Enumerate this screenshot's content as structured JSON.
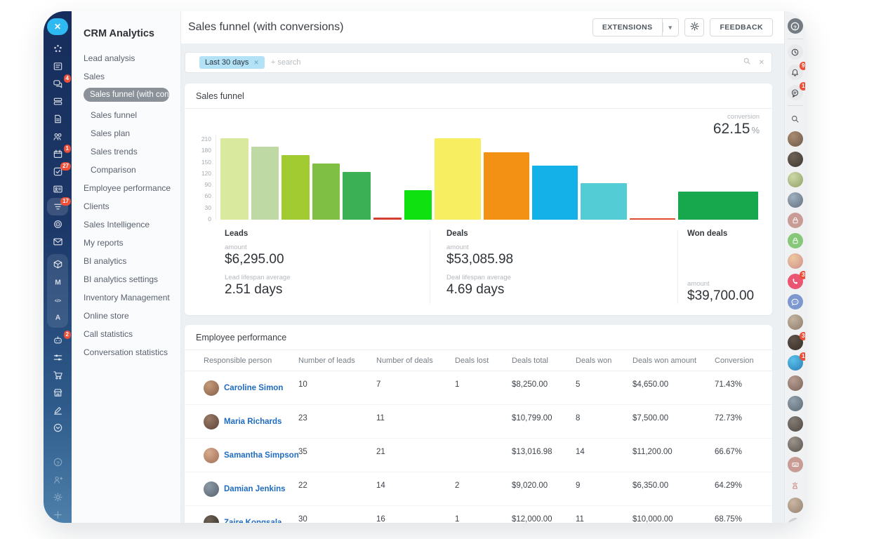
{
  "sidebar": {
    "title": "CRM Analytics",
    "items": [
      {
        "label": "Lead analysis",
        "indent": 0,
        "selected": false
      },
      {
        "label": "Sales",
        "indent": 0,
        "selected": false
      },
      {
        "label": "Sales funnel (with con...",
        "indent": 1,
        "selected": true
      },
      {
        "label": "Sales funnel",
        "indent": 1,
        "selected": false
      },
      {
        "label": "Sales plan",
        "indent": 1,
        "selected": false
      },
      {
        "label": "Sales trends",
        "indent": 1,
        "selected": false
      },
      {
        "label": "Comparison",
        "indent": 1,
        "selected": false
      },
      {
        "label": "Employee performance",
        "indent": 0,
        "selected": false
      },
      {
        "label": "Clients",
        "indent": 0,
        "selected": false
      },
      {
        "label": "Sales Intelligence",
        "indent": 0,
        "selected": false
      },
      {
        "label": "My reports",
        "indent": 0,
        "selected": false
      },
      {
        "label": "BI analytics",
        "indent": 0,
        "selected": false
      },
      {
        "label": "BI analytics settings",
        "indent": 0,
        "selected": false
      },
      {
        "label": "Inventory Management",
        "indent": 0,
        "selected": false
      },
      {
        "label": "Online store",
        "indent": 0,
        "selected": false
      },
      {
        "label": "Call statistics",
        "indent": 0,
        "selected": false
      },
      {
        "label": "Conversation statistics",
        "indent": 0,
        "selected": false
      }
    ]
  },
  "left_rail": {
    "close_glyph": "✕",
    "items": [
      {
        "icon": "pulse",
        "name": "pulse"
      },
      {
        "icon": "feed",
        "name": "feed"
      },
      {
        "icon": "messenger",
        "name": "messenger",
        "badge": "4"
      },
      {
        "icon": "drive",
        "name": "drive"
      },
      {
        "icon": "docs",
        "name": "documents"
      },
      {
        "icon": "people",
        "name": "employees"
      },
      {
        "icon": "calendar",
        "name": "calendar",
        "badge": "1"
      },
      {
        "icon": "tasks",
        "name": "tasks",
        "badge": "27"
      },
      {
        "icon": "card",
        "name": "contact-center"
      },
      {
        "icon": "funnel",
        "name": "crm",
        "badge": "17",
        "highlight": true
      },
      {
        "icon": "target",
        "name": "marketing-target"
      },
      {
        "icon": "mail",
        "name": "mail"
      },
      {
        "icon": "box",
        "name": "inventory",
        "group": true
      },
      {
        "icon": "m",
        "name": "marketing-m",
        "group": true
      },
      {
        "icon": "code",
        "name": "sites",
        "group": true
      },
      {
        "icon": "a",
        "name": "automation",
        "group": true
      },
      {
        "icon": "robot",
        "name": "ai-assistant",
        "badge": "2"
      },
      {
        "icon": "sliders",
        "name": "workflows"
      },
      {
        "icon": "cart",
        "name": "sales-cart"
      },
      {
        "icon": "store",
        "name": "online-store"
      },
      {
        "icon": "sign",
        "name": "e-sign"
      },
      {
        "icon": "chevdown",
        "name": "more"
      },
      {
        "spacer": true
      },
      {
        "icon": "help",
        "name": "help",
        "dim": true
      },
      {
        "icon": "invite",
        "name": "invite-users",
        "dim": true
      },
      {
        "icon": "gear",
        "name": "settings",
        "dim": true
      },
      {
        "icon": "plus",
        "name": "add",
        "dim": true
      }
    ]
  },
  "header": {
    "title": "Sales funnel (with conversions)",
    "extensions_label": "EXTENSIONS",
    "feedback_label": "FEEDBACK"
  },
  "filter": {
    "chip": "Last 30 days",
    "chip_remove_glyph": "✕",
    "placeholder": "+ search",
    "clear_glyph": "✕"
  },
  "funnel_card": {
    "title": "Sales funnel",
    "conversion_label": "conversion",
    "conversion_value": "62.15",
    "conversion_unit": "%"
  },
  "chart_data": {
    "type": "bar",
    "title": "Sales funnel",
    "ylim": [
      0,
      210
    ],
    "yticks": [
      210,
      180,
      150,
      120,
      90,
      60,
      30,
      0
    ],
    "grid": false,
    "conversion_pct": 62.15,
    "groups": [
      "Leads",
      "Deals",
      "Won deals"
    ],
    "series": [
      {
        "group": "Leads",
        "value": 213,
        "color": "#d9ea9e"
      },
      {
        "group": "Leads",
        "value": 192,
        "color": "#bed9a4"
      },
      {
        "group": "Leads",
        "value": 170,
        "color": "#a2cb31"
      },
      {
        "group": "Leads",
        "value": 147,
        "color": "#7fbf44"
      },
      {
        "group": "Leads",
        "value": 125,
        "color": "#3cb054"
      },
      {
        "group": "Leads",
        "value": 5,
        "color": "#d23f31"
      },
      {
        "group": "Leads",
        "value": 78,
        "color": "#0fe00f"
      },
      {
        "group": "Deals",
        "value": 213,
        "color": "#f8ee62"
      },
      {
        "group": "Deals",
        "value": 177,
        "color": "#f39114"
      },
      {
        "group": "Deals",
        "value": 141,
        "color": "#14b1e8"
      },
      {
        "group": "Deals",
        "value": 96,
        "color": "#54ccd6"
      },
      {
        "group": "Deals",
        "value": 3,
        "color": "#e04b33"
      },
      {
        "group": "Won deals",
        "value": 74,
        "color": "#17a84d"
      }
    ]
  },
  "stats": {
    "leads": {
      "title": "Leads",
      "amount_label": "amount",
      "amount": "$6,295.00",
      "lifespan_label": "Lead lifespan average",
      "lifespan": "2.51 days"
    },
    "deals": {
      "title": "Deals",
      "amount_label": "amount",
      "amount": "$53,085.98",
      "lifespan_label": "Deal lifespan average",
      "lifespan": "4.69 days"
    },
    "won": {
      "title": "Won deals",
      "amount_label": "amount",
      "amount": "$39,700.00"
    }
  },
  "table": {
    "title": "Employee performance",
    "columns": [
      "Responsible person",
      "Number of leads",
      "Number of deals",
      "Deals lost",
      "Deals total",
      "Deals won",
      "Deals won amount",
      "Conversion"
    ],
    "rows": [
      {
        "person": "Caroline Simon",
        "leads": "10",
        "deals": "7",
        "lost": "1",
        "total": "$8,250.00",
        "won": "5",
        "won_amount": "$4,650.00",
        "conversion": "71.43%",
        "avatar": [
          "#c59a76",
          "#84604a"
        ]
      },
      {
        "person": "Maria Richards",
        "leads": "23",
        "deals": "11",
        "lost": "",
        "total": "$10,799.00",
        "won": "8",
        "won_amount": "$7,500.00",
        "conversion": "72.73%",
        "avatar": [
          "#9a7a68",
          "#5c4336"
        ]
      },
      {
        "person": "Samantha Simpson",
        "leads": "35",
        "deals": "21",
        "lost": "",
        "total": "$13,016.98",
        "won": "14",
        "won_amount": "$11,200.00",
        "conversion": "66.67%",
        "avatar": [
          "#d8ab8e",
          "#a06f57"
        ]
      },
      {
        "person": "Damian Jenkins",
        "leads": "22",
        "deals": "14",
        "lost": "2",
        "total": "$9,020.00",
        "won": "9",
        "won_amount": "$6,350.00",
        "conversion": "64.29%",
        "avatar": [
          "#8d9aa6",
          "#55626e"
        ]
      },
      {
        "person": "Zaire Kongsala",
        "leads": "30",
        "deals": "16",
        "lost": "1",
        "total": "$12,000.00",
        "won": "11",
        "won_amount": "$10,000.00",
        "conversion": "68.75%",
        "avatar": [
          "#6e6255",
          "#362e26"
        ]
      }
    ]
  },
  "right_rail": {
    "items": [
      {
        "kind": "icon",
        "icon": "help",
        "name": "helpdesk",
        "bg": "#747b83",
        "fg": "#ffffff"
      },
      {
        "kind": "divider"
      },
      {
        "kind": "icon",
        "icon": "clock",
        "name": "history",
        "bg": "#e7e9eb",
        "fg": "#3f454b"
      },
      {
        "kind": "icon",
        "icon": "bell",
        "name": "notifications",
        "bg": "#e7e9eb",
        "fg": "#3f454b",
        "badge": "9"
      },
      {
        "kind": "icon",
        "icon": "chatround",
        "name": "messenger-panel",
        "bg": "#e7e9eb",
        "fg": "#3f454b",
        "badge": "1"
      },
      {
        "kind": "divider"
      },
      {
        "kind": "icon",
        "icon": "search",
        "name": "search",
        "bg": "transparent",
        "fg": "#565d64"
      },
      {
        "kind": "avatar",
        "name": "user-avatar",
        "colors": [
          "#a98b72",
          "#6f5948"
        ]
      },
      {
        "kind": "avatar",
        "name": "user-avatar",
        "colors": [
          "#6e6257",
          "#3e3730"
        ]
      },
      {
        "kind": "avatar",
        "name": "user-avatar",
        "colors": [
          "#cdd9a8",
          "#8fa065"
        ]
      },
      {
        "kind": "avatar",
        "name": "user-avatar",
        "colors": [
          "#9fb0bf",
          "#61707e"
        ]
      },
      {
        "kind": "icon",
        "icon": "lock",
        "name": "private-chat",
        "bg": "#c89c95",
        "fg": "#ffffff"
      },
      {
        "kind": "icon",
        "icon": "lock",
        "name": "private-chat",
        "bg": "#86c77a",
        "fg": "#ffffff"
      },
      {
        "kind": "avatar",
        "name": "user-avatar",
        "colors": [
          "#ecc9a0",
          "#cf8f8a"
        ]
      },
      {
        "kind": "icon",
        "icon": "phone",
        "name": "calls",
        "bg": "#ea5671",
        "fg": "#ffffff",
        "badge": "3"
      },
      {
        "kind": "icon",
        "icon": "chatdots",
        "name": "group-chat",
        "bg": "#7d97cf",
        "fg": "#ffffff"
      },
      {
        "kind": "avatar",
        "name": "user-avatar",
        "colors": [
          "#c4b3a0",
          "#8d7c6b"
        ]
      },
      {
        "kind": "avatar",
        "name": "user-avatar",
        "colors": [
          "#5f5349",
          "#362e27"
        ],
        "badge": "3"
      },
      {
        "kind": "avatar",
        "name": "user-avatar",
        "colors": [
          "#59c0ea",
          "#2b7fb5"
        ],
        "badge": "1"
      },
      {
        "kind": "avatar",
        "name": "user-avatar",
        "colors": [
          "#b79d92",
          "#7c6459"
        ]
      },
      {
        "kind": "avatar",
        "name": "user-avatar",
        "colors": [
          "#93a1ad",
          "#5c6a76"
        ]
      },
      {
        "kind": "avatar",
        "name": "user-avatar",
        "colors": [
          "#847d75",
          "#4e4840"
        ]
      },
      {
        "kind": "avatar",
        "name": "user-avatar",
        "colors": [
          "#9b948b",
          "#5a544d"
        ]
      },
      {
        "kind": "icon",
        "icon": "keyboard",
        "name": "connected-device",
        "bg": "#c89c95",
        "fg": "#ffffff"
      },
      {
        "kind": "icon",
        "icon": "sketch",
        "name": "sticker",
        "bg": "transparent",
        "fg": "#c9847e"
      },
      {
        "kind": "avatar",
        "name": "user-avatar",
        "colors": [
          "#cbb6a4",
          "#93816f"
        ]
      },
      {
        "kind": "avatar",
        "name": "user-avatar",
        "colors": [
          "#d7dadd",
          "#aab0b5"
        ]
      }
    ]
  }
}
